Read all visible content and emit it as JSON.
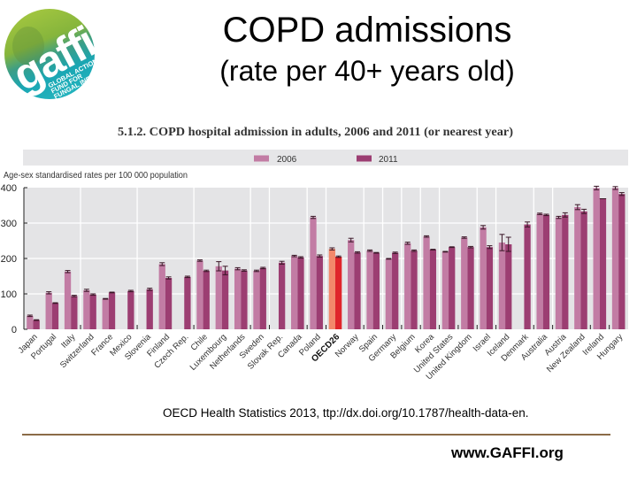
{
  "logo": {
    "wordmark": "gaffi",
    "tagline_lines": [
      "GLOBAL ACTION",
      "FUND FOR",
      "FUNGAL INFECTIONS"
    ]
  },
  "header": {
    "title": "COPD admissions",
    "subtitle": "(rate per 40+ years old)"
  },
  "chart_data": {
    "type": "bar",
    "title": "5.1.2. COPD hospital admission in adults, 2006 and 2011 (or nearest year)",
    "xlabel": "",
    "ylabel": "Age-sex standardised rates per 100 000 population",
    "ylim": [
      0,
      400
    ],
    "yticks": [
      0,
      100,
      200,
      300,
      400
    ],
    "grid": true,
    "legend": "top",
    "categories": [
      "Japan",
      "Portugal",
      "Italy",
      "Switzerland",
      "France",
      "Mexico",
      "Slovenia",
      "Finland",
      "Czech Rep.",
      "Chile",
      "Luxembourg",
      "Netherlands",
      "Sweden",
      "Slovak Rep.",
      "Canada",
      "Poland",
      "OECD26",
      "Norway",
      "Spain",
      "Germany",
      "Belgium",
      "Korea",
      "United States",
      "United Kingdom",
      "Israel",
      "Iceland",
      "Denmark",
      "Australia",
      "Austria",
      "New Zealand",
      "Ireland",
      "Hungary"
    ],
    "highlight_category": "OECD26",
    "series": [
      {
        "name": "2006",
        "color": "#c27ca4",
        "highlight_color": "#f3886b",
        "values": [
          38,
          103,
          163,
          110,
          86,
          null,
          null,
          184,
          null,
          194,
          178,
          171,
          165,
          null,
          207,
          316,
          227,
          252,
          222,
          199,
          243,
          262,
          219,
          259,
          288,
          245,
          null,
          326,
          316,
          345,
          399,
          399
        ],
        "error": [
          2,
          3,
          3,
          3,
          1,
          0,
          0,
          4,
          0,
          2,
          13,
          3,
          2,
          0,
          2,
          3,
          3,
          5,
          2,
          1,
          3,
          2,
          1,
          2,
          5,
          23,
          0,
          2,
          3,
          7,
          5,
          4
        ]
      },
      {
        "name": "2011",
        "color": "#9c3e72",
        "highlight_color": "#e0252b",
        "values": [
          26,
          74,
          94,
          98,
          104,
          108,
          113,
          145,
          148,
          165,
          166,
          166,
          173,
          188,
          203,
          207,
          205,
          217,
          216,
          216,
          222,
          225,
          232,
          232,
          232,
          240,
          296,
          323,
          323,
          333,
          370,
          382
        ],
        "error": [
          1,
          1,
          2,
          2,
          1,
          2,
          3,
          3,
          2,
          2,
          12,
          2,
          2,
          4,
          2,
          3,
          2,
          2,
          1,
          2,
          2,
          1,
          1,
          2,
          4,
          20,
          7,
          2,
          6,
          6,
          0,
          4
        ]
      }
    ],
    "category_group_boundaries": [
      3,
      6,
      9,
      12,
      13,
      15,
      16,
      18,
      19,
      20,
      21,
      22,
      24,
      25,
      27,
      28
    ],
    "x_tick_boundaries": [
      0,
      3,
      6,
      9,
      12,
      13,
      15,
      16,
      18,
      19,
      20,
      21,
      22,
      23,
      24,
      25,
      27,
      28,
      30,
      31
    ]
  },
  "footer": {
    "source": "OECD Health Statistics 2013, ttp://dx.doi.org/10.1787/health-data-en.",
    "website": "www.GAFFI.org"
  },
  "colors": {
    "plot_background": "#e4e4e6",
    "legend_band": "#e6e6e8",
    "divider": "#8b6b47",
    "logo_green": "#9cc23e",
    "logo_teal": "#19a8b5"
  }
}
